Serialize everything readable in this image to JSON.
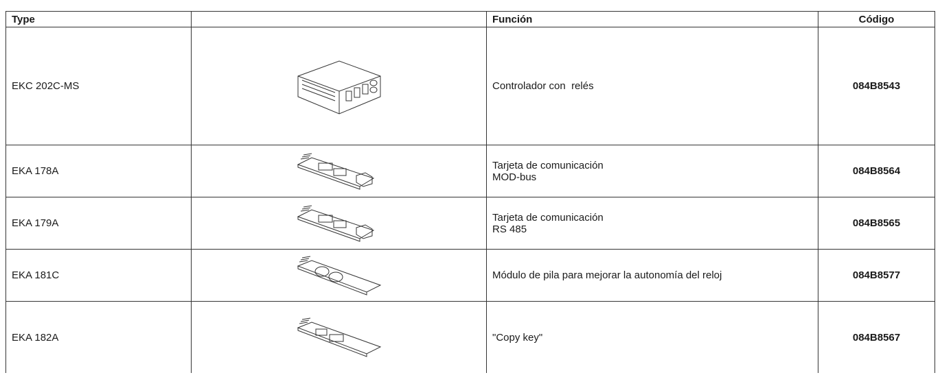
{
  "table": {
    "header": [
      "Type",
      "Función",
      "Código"
    ],
    "rows": [
      {
        "type": "EKC 202C-MS",
        "function": [
          "Controlador con  relés"
        ],
        "code": "084B8543"
      },
      {
        "type": "EKA 178A",
        "function": [
          "Tarjeta de comunicación",
          "MOD-bus"
        ],
        "code": "084B8564"
      },
      {
        "type": "EKA 179A",
        "function": [
          "Tarjeta de comunicación",
          "RS 485"
        ],
        "code": "084B8565"
      },
      {
        "type": "EKA 181C",
        "function": [
          "Módulo de pila para mejorar la autonomía del reloj"
        ],
        "code": "084B8577"
      },
      {
        "type": "EKA 182A",
        "function": [
          "\"Copy key\""
        ],
        "code": "084B8567"
      }
    ]
  }
}
